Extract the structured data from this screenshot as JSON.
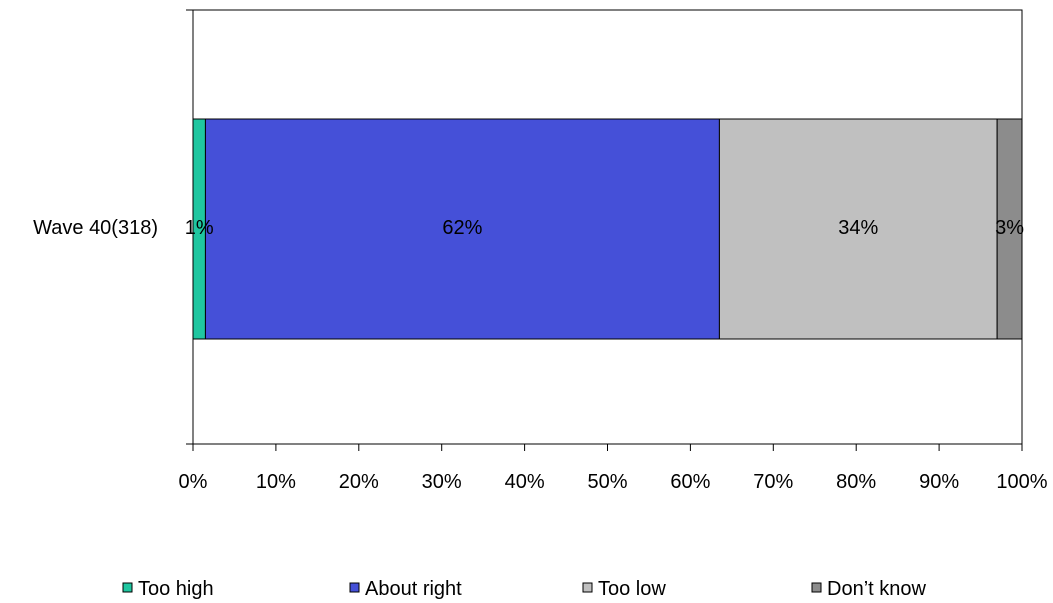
{
  "chart_data": {
    "type": "bar",
    "orientation": "horizontal",
    "stacked": true,
    "categories": [
      "Wave 40(318)"
    ],
    "series": [
      {
        "name": "Too high",
        "values": [
          1.5
        ],
        "label": "1%",
        "color": "#1fc6a0"
      },
      {
        "name": "About right",
        "values": [
          62
        ],
        "label": "62%",
        "color": "#4550d8"
      },
      {
        "name": "Too low",
        "values": [
          33.5
        ],
        "label": "34%",
        "color": "#c0c0c0"
      },
      {
        "name": "Don’t know",
        "values": [
          3
        ],
        "label": "3%",
        "color": "#8c8c8c"
      }
    ],
    "x_ticks": [
      "0%",
      "10%",
      "20%",
      "30%",
      "40%",
      "50%",
      "60%",
      "70%",
      "80%",
      "90%",
      "100%"
    ],
    "xlim": [
      0,
      100
    ],
    "grid": false,
    "legend": "bottom"
  }
}
